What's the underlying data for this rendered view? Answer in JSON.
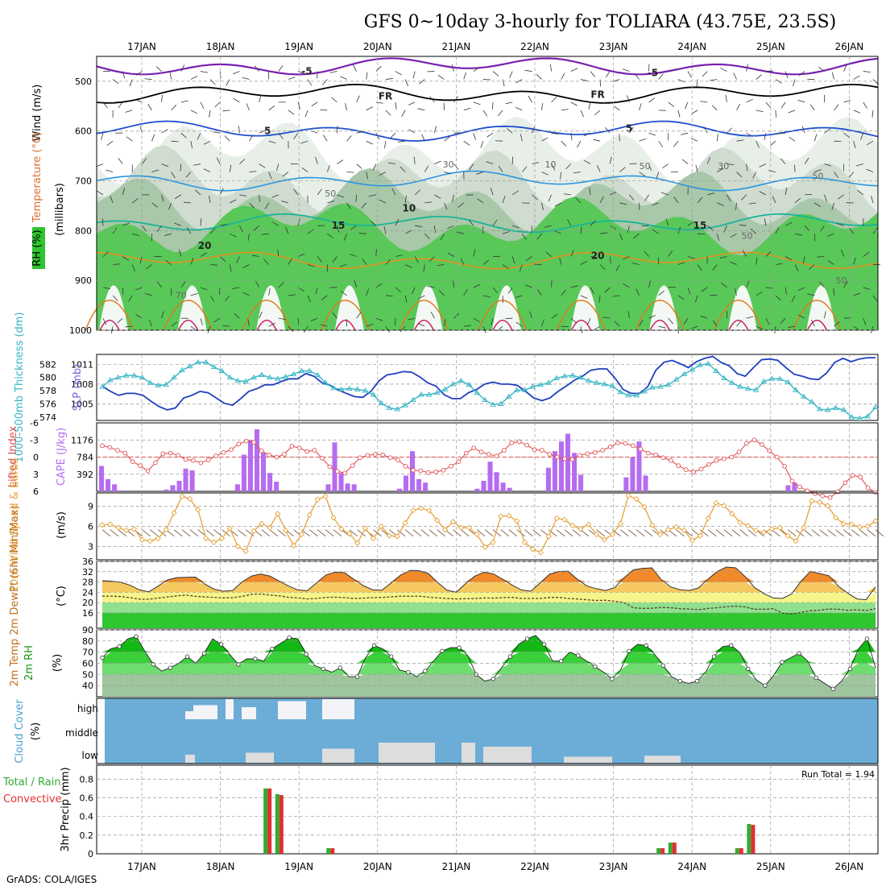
{
  "title": "GFS 0~10day 3-hourly for TOLIARA (43.75E, 23.5S)",
  "credit": "GrADS: COLA/IGES",
  "run_total_label": "Run Total = 1.94",
  "dates": [
    "17JAN",
    "18JAN",
    "19JAN",
    "20JAN",
    "21JAN",
    "22JAN",
    "23JAN",
    "24JAN",
    "25JAN",
    "26JAN"
  ],
  "colors": {
    "rh_green": "#2ec52e",
    "slp": "#1f3fbf",
    "thickness": "#36b5c5",
    "lifted": "#e05050",
    "cape": "#b56cf0",
    "wind10m": "#e6a23c",
    "temp_fill": "#ff8c1a",
    "rh2m": "#1ecc1e",
    "cloud_bg": "#6badd6",
    "precip_total": "#33aa33",
    "precip_conv": "#e03030"
  },
  "chart_data": [
    {
      "id": "upper_air",
      "type": "heatmap",
      "title": "Upper air RH / temperature / wind",
      "ylabels_left": [
        "Wind (m/s)",
        "Temperature (°C)",
        "RH (%)"
      ],
      "ylabel_right": "(millibars)",
      "ylim": [
        1000,
        450
      ],
      "yticks": [
        500,
        600,
        700,
        800,
        900,
        1000
      ],
      "contour_labels": [
        {
          "text": "-5",
          "x": 2.1,
          "p": 480
        },
        {
          "text": "-5",
          "x": 6.5,
          "p": 483
        },
        {
          "text": "FR",
          "x": 3.1,
          "p": 530
        },
        {
          "text": "FR",
          "x": 5.8,
          "p": 527
        },
        {
          "text": "5",
          "x": 1.6,
          "p": 600
        },
        {
          "text": "5",
          "x": 6.2,
          "p": 595
        },
        {
          "text": "10",
          "x": 3.4,
          "p": 755
        },
        {
          "text": "15",
          "x": 2.5,
          "p": 790
        },
        {
          "text": "15",
          "x": 7.1,
          "p": 790
        },
        {
          "text": "20",
          "x": 0.8,
          "p": 830
        },
        {
          "text": "20",
          "x": 5.8,
          "p": 850
        }
      ],
      "rh_labels": [
        {
          "text": "30",
          "x": 3.9,
          "p": 667
        },
        {
          "text": "10",
          "x": 5.2,
          "p": 667
        },
        {
          "text": "50",
          "x": 6.4,
          "p": 670
        },
        {
          "text": "30",
          "x": 7.4,
          "p": 670
        },
        {
          "text": "50",
          "x": 8.6,
          "p": 690
        },
        {
          "text": "50",
          "x": 2.4,
          "p": 725
        },
        {
          "text": "50",
          "x": 8.9,
          "p": 900
        },
        {
          "text": "70",
          "x": 0.5,
          "p": 930
        },
        {
          "text": "50",
          "x": 7.7,
          "p": 810
        }
      ]
    },
    {
      "id": "slp_thickness",
      "type": "line",
      "ylabel_left": "1000-500mb Thickness (dm)",
      "ylabel_right": "SLP (mb)",
      "thickness_ticks": [
        574,
        576,
        578,
        580,
        582
      ],
      "slp_ticks": [
        1005,
        1008,
        1011
      ],
      "thickness_lim": [
        573.5,
        583.5
      ],
      "slp_lim": [
        1002.5,
        1012.5
      ],
      "series": [
        {
          "name": "SLP (mb)",
          "values": [
            1007.7,
            1006.9,
            1006.3,
            1006.6,
            1006.6,
            1006.3,
            1005.4,
            1004.6,
            1004.1,
            1004.4,
            1005.9,
            1006.3,
            1006.9,
            1006.7,
            1005.9,
            1005.1,
            1004.8,
            1005.8,
            1006.9,
            1007.3,
            1007.9,
            1007.9,
            1008.4,
            1008.8,
            1008.8,
            1009.6,
            1009.2,
            1008.2,
            1007.8,
            1007.1,
            1006.6,
            1006.1,
            1006.0,
            1006.9,
            1008.5,
            1009.4,
            1009.6,
            1009.9,
            1009.8,
            1009.1,
            1008.2,
            1007.7,
            1006.4,
            1005.8,
            1005.8,
            1006.7,
            1007.2,
            1008.0,
            1008.3,
            1008.0,
            1008.0,
            1007.8,
            1006.9,
            1005.9,
            1005.5,
            1005.9,
            1006.9,
            1007.7,
            1008.6,
            1009.2,
            1010.1,
            1010.3,
            1010.3,
            1008.9,
            1007.2,
            1006.6,
            1006.6,
            1007.6,
            1010.1,
            1011.3,
            1011.6,
            1011.1,
            1010.5,
            1011.4,
            1011.9,
            1012.2,
            1011.3,
            1010.8,
            1009.6,
            1009.2,
            1010.5,
            1011.7,
            1011.8,
            1011.6,
            1010.5,
            1009.5,
            1009.2,
            1008.8,
            1008.7,
            1009.7,
            1011.3,
            1011.9,
            1011.4,
            1011.8,
            1012.0,
            1012.0
          ]
        },
        {
          "name": "1000-500mb Thickness (dm)",
          "values": [
            578.6,
            579.6,
            580.0,
            580.3,
            580.3,
            580.0,
            579.2,
            578.8,
            578.9,
            580.0,
            581.1,
            581.7,
            582.3,
            582.3,
            581.6,
            581.0,
            580.0,
            579.5,
            579.4,
            580.0,
            580.4,
            580.0,
            579.8,
            580.1,
            580.5,
            581.0,
            581.0,
            580.4,
            579.2,
            578.4,
            578.2,
            578.3,
            578.2,
            578.0,
            577.4,
            576.1,
            575.4,
            575.2,
            575.8,
            576.6,
            577.4,
            577.4,
            577.7,
            578.2,
            579.0,
            579.5,
            578.9,
            577.7,
            576.6,
            575.9,
            576.0,
            577.1,
            578.1,
            578.1,
            578.6,
            578.9,
            579.2,
            579.9,
            580.2,
            580.3,
            580.0,
            579.5,
            579.2,
            579.0,
            578.7,
            577.8,
            577.3,
            577.3,
            577.9,
            578.5,
            578.6,
            578.9,
            579.7,
            580.5,
            581.2,
            581.9,
            582.1,
            581.0,
            579.9,
            579.2,
            578.6,
            578.3,
            578.1,
            579.4,
            579.8,
            579.8,
            579.3,
            578.1,
            577.1,
            576.3,
            575.2,
            575.1,
            575.4,
            575.1,
            574.0,
            573.8,
            574.1,
            575.5
          ]
        }
      ]
    },
    {
      "id": "cape_li",
      "type": "bar",
      "ylabel_left": "Lifted Index",
      "ylabel_right": "CAPE (J/kg)",
      "li_ticks": [
        -6,
        -3,
        0,
        3,
        6
      ],
      "li_lim": [
        -6,
        6
      ],
      "cape_ticks": [
        392,
        784,
        1176
      ],
      "cape_lim": [
        0,
        1568
      ],
      "series": [
        {
          "name": "CAPE (J/kg)",
          "values": [
            580,
            280,
            160,
            20,
            0,
            0,
            0,
            0,
            0,
            0,
            40,
            140,
            240,
            520,
            480,
            0,
            0,
            0,
            0,
            0,
            0,
            160,
            840,
            1170,
            1420,
            880,
            420,
            220,
            0,
            0,
            0,
            0,
            0,
            0,
            0,
            160,
            1120,
            420,
            180,
            160,
            0,
            0,
            0,
            0,
            0,
            0,
            60,
            360,
            920,
            280,
            200,
            0,
            0,
            0,
            0,
            0,
            0,
            0,
            60,
            240,
            680,
            440,
            200,
            80,
            0,
            0,
            0,
            0,
            0,
            540,
            920,
            1140,
            1320,
            880,
            380,
            0,
            0,
            0,
            0,
            0,
            0,
            320,
            780,
            1140,
            360,
            0,
            0,
            0,
            0,
            0,
            0,
            0,
            0,
            0,
            0,
            0,
            0,
            0,
            0,
            0,
            0,
            0,
            0,
            0,
            0,
            0,
            140,
            200,
            0,
            0,
            0,
            0,
            0,
            0,
            0,
            0,
            0,
            0,
            0,
            0
          ]
        },
        {
          "name": "Lifted Index",
          "values": [
            -2.0,
            -1.7,
            -1.2,
            -0.7,
            0.8,
            1.5,
            2.4,
            1.0,
            -0.6,
            -0.7,
            -0.3,
            0.4,
            0.6,
            1.0,
            0.5,
            -0.2,
            -0.8,
            -1.3,
            -2.3,
            -2.8,
            -2.6,
            -1.1,
            -0.4,
            0.0,
            -0.5,
            -1.9,
            -1.6,
            -1.0,
            -1.2,
            0.2,
            1.7,
            2.5,
            2.8,
            1.5,
            0.1,
            -0.3,
            -0.5,
            -0.4,
            0.1,
            0.5,
            1.6,
            2.3,
            2.4,
            2.7,
            2.6,
            2.3,
            1.6,
            0.8,
            -0.7,
            -1.6,
            -0.9,
            -0.5,
            -0.2,
            -1.2,
            -2.5,
            -2.7,
            -2.1,
            -1.3,
            -1.2,
            -0.5,
            0.0,
            0.3,
            0.4,
            -0.3,
            -0.6,
            -0.8,
            -1.2,
            -1.8,
            -2.5,
            -2.4,
            -2.0,
            -1.4,
            -0.7,
            -0.4,
            0.1,
            0.6,
            1.5,
            2.2,
            2.6,
            2.1,
            1.3,
            0.6,
            0.3,
            0.0,
            -0.9,
            -2.4,
            -3.0,
            -2.2,
            -1.1,
            0.0,
            1.6,
            4.2,
            5.2,
            5.9,
            6.4,
            6.8,
            7.1,
            6.1,
            4.5,
            3.2,
            3.5,
            5.4,
            6.2
          ]
        }
      ]
    },
    {
      "id": "wind10m",
      "type": "line",
      "ylabel_left": "10m Wind Speed & Barbs",
      "ylabel_right": "(m/s)",
      "yticks": [
        3,
        6,
        9
      ],
      "ylim": [
        1,
        11
      ],
      "series": [
        {
          "name": "10m Wind Speed (m/s)",
          "values": [
            6.2,
            6.3,
            5.8,
            5.4,
            5.6,
            4.0,
            3.8,
            4.2,
            5.5,
            8.0,
            10.5,
            10.1,
            8.5,
            4.2,
            3.6,
            4.2,
            5.7,
            3.0,
            2.3,
            5.3,
            6.4,
            5.8,
            7.9,
            5.4,
            3.1,
            4.8,
            7.7,
            10.0,
            10.5,
            7.3,
            5.6,
            4.9,
            3.5,
            5.7,
            4.2,
            6.0,
            4.6,
            4.5,
            6.5,
            8.4,
            8.7,
            8.4,
            6.9,
            5.5,
            6.7,
            5.8,
            5.8,
            4.8,
            2.9,
            3.6,
            7.5,
            7.6,
            6.8,
            3.6,
            2.6,
            2.1,
            4.5,
            7.2,
            7.0,
            6.1,
            5.6,
            6.3,
            4.8,
            4.0,
            4.8,
            6.4,
            10.6,
            10.1,
            8.9,
            6.2,
            4.8,
            5.5,
            5.9,
            5.4,
            3.9,
            4.6,
            7.2,
            9.5,
            9.1,
            7.9,
            6.6,
            6.1,
            5.4,
            5.1,
            5.6,
            5.8,
            4.6,
            3.8,
            5.8,
            9.8,
            9.6,
            9.1,
            7.3,
            6.4,
            6.3,
            5.9,
            6.0,
            6.8
          ]
        }
      ]
    },
    {
      "id": "temp2m",
      "type": "area",
      "ylabel_left": "2m Temp 2m DewPt (6hr Min/Max)",
      "ylabel_right": "(°C)",
      "yticks": [
        16,
        20,
        24,
        28,
        32,
        36
      ],
      "ylim": [
        10,
        36
      ],
      "series": [
        {
          "name": "2m Temp",
          "values": [
            28.5,
            28.3,
            27.9,
            26.7,
            24.9,
            24.2,
            26.4,
            28.8,
            29.7,
            29.8,
            29.9,
            27.2,
            25.2,
            24.4,
            24.7,
            28.0,
            30.3,
            31.1,
            30.3,
            28.3,
            26.4,
            24.9,
            24.6,
            27.6,
            30.7,
            31.8,
            31.6,
            29.0,
            26.6,
            25.0,
            24.8,
            27.6,
            30.6,
            32.5,
            32.4,
            31.3,
            27.8,
            24.8,
            24.0,
            27.4,
            30.3,
            31.8,
            31.1,
            29.0,
            26.8,
            24.9,
            24.4,
            27.6,
            31.0,
            32.1,
            32.2,
            29.0,
            26.5,
            25.4,
            24.7,
            25.8,
            29.6,
            32.7,
            33.3,
            33.5,
            28.9,
            26.1,
            25.0,
            24.7,
            25.7,
            29.0,
            32.1,
            33.8,
            33.5,
            30.1,
            25.9,
            23.5,
            21.8,
            21.6,
            23.3,
            28.3,
            32.1,
            31.3,
            30.4,
            26.4,
            23.7,
            21.4,
            21.1,
            26.1
          ]
        },
        {
          "name": "2m DewPt",
          "values": [
            22.5,
            22.5,
            22.3,
            21.9,
            21.3,
            21.3,
            21.7,
            22.2,
            22.6,
            22.9,
            22.4,
            22.2,
            22.0,
            21.8,
            21.9,
            22.4,
            23.2,
            23.3,
            22.9,
            22.6,
            22.0,
            21.8,
            21.4,
            21.6,
            22.0,
            22.1,
            21.9,
            21.6,
            21.7,
            21.9,
            22.0,
            22.2,
            22.5,
            22.4,
            22.5,
            22.1,
            21.8,
            21.6,
            21.4,
            21.5,
            21.6,
            21.8,
            21.7,
            21.9,
            22.0,
            21.6,
            21.6,
            21.6,
            22.0,
            22.0,
            21.6,
            21.4,
            21.1,
            20.8,
            20.9,
            20.5,
            20.0,
            18.0,
            17.7,
            17.8,
            18.1,
            18.0,
            17.6,
            17.5,
            17.2,
            17.7,
            18.0,
            18.4,
            18.6,
            18.3,
            17.4,
            17.4,
            17.6,
            15.9,
            15.5,
            16.2,
            16.8,
            17.0,
            17.5,
            17.4,
            17.0,
            17.2,
            16.9,
            17.6
          ]
        }
      ]
    },
    {
      "id": "rh2m",
      "type": "area",
      "ylabel_left": "2m RH",
      "ylabel_right": "(%)",
      "yticks": [
        40,
        50,
        60,
        70,
        80,
        90
      ],
      "ylim": [
        30,
        90
      ],
      "series": [
        {
          "name": "2m RH (%)",
          "values": [
            65,
            73,
            75,
            82,
            84,
            71,
            59,
            53,
            56,
            60,
            66,
            60,
            69,
            82,
            77,
            68,
            59,
            64,
            64,
            62,
            73,
            78,
            83,
            82,
            68,
            58,
            55,
            52,
            56,
            48,
            48,
            65,
            76,
            73,
            66,
            54,
            52,
            48,
            53,
            62,
            71,
            74,
            74,
            67,
            50,
            44,
            46,
            56,
            66,
            77,
            82,
            85,
            77,
            62,
            62,
            70,
            67,
            62,
            57,
            52,
            46,
            54,
            71,
            77,
            76,
            68,
            58,
            48,
            44,
            42,
            44,
            52,
            66,
            75,
            76,
            70,
            55,
            45,
            40,
            49,
            61,
            65,
            69,
            62,
            47,
            42,
            37,
            44,
            55,
            73,
            82,
            56
          ]
        }
      ]
    },
    {
      "id": "cloud",
      "type": "bar",
      "ylabel_left": "Cloud Cover",
      "ylabel_right": "(%)",
      "layers": [
        "high",
        "middle",
        "low"
      ]
    },
    {
      "id": "precip",
      "type": "bar",
      "ylabel_left": "Total / Rain  Convective",
      "ylabel_right": "3hr Precip (mm)",
      "yticks": [
        0,
        0.2,
        0.4,
        0.6,
        0.8
      ],
      "ylim": [
        0,
        0.95
      ],
      "bars": [
        {
          "t": 4.6,
          "total": 0.7,
          "conv": 0.7
        },
        {
          "t": 4.75,
          "total": 0.64,
          "conv": 0.63
        },
        {
          "t": 5.4,
          "total": 0.06,
          "conv": 0.06
        },
        {
          "t": 9.6,
          "total": 0.06,
          "conv": 0.06
        },
        {
          "t": 9.75,
          "total": 0.12,
          "conv": 0.12
        },
        {
          "t": 10.6,
          "total": 0.06,
          "conv": 0.06
        },
        {
          "t": 10.75,
          "total": 0.32,
          "conv": 0.31
        }
      ]
    }
  ]
}
